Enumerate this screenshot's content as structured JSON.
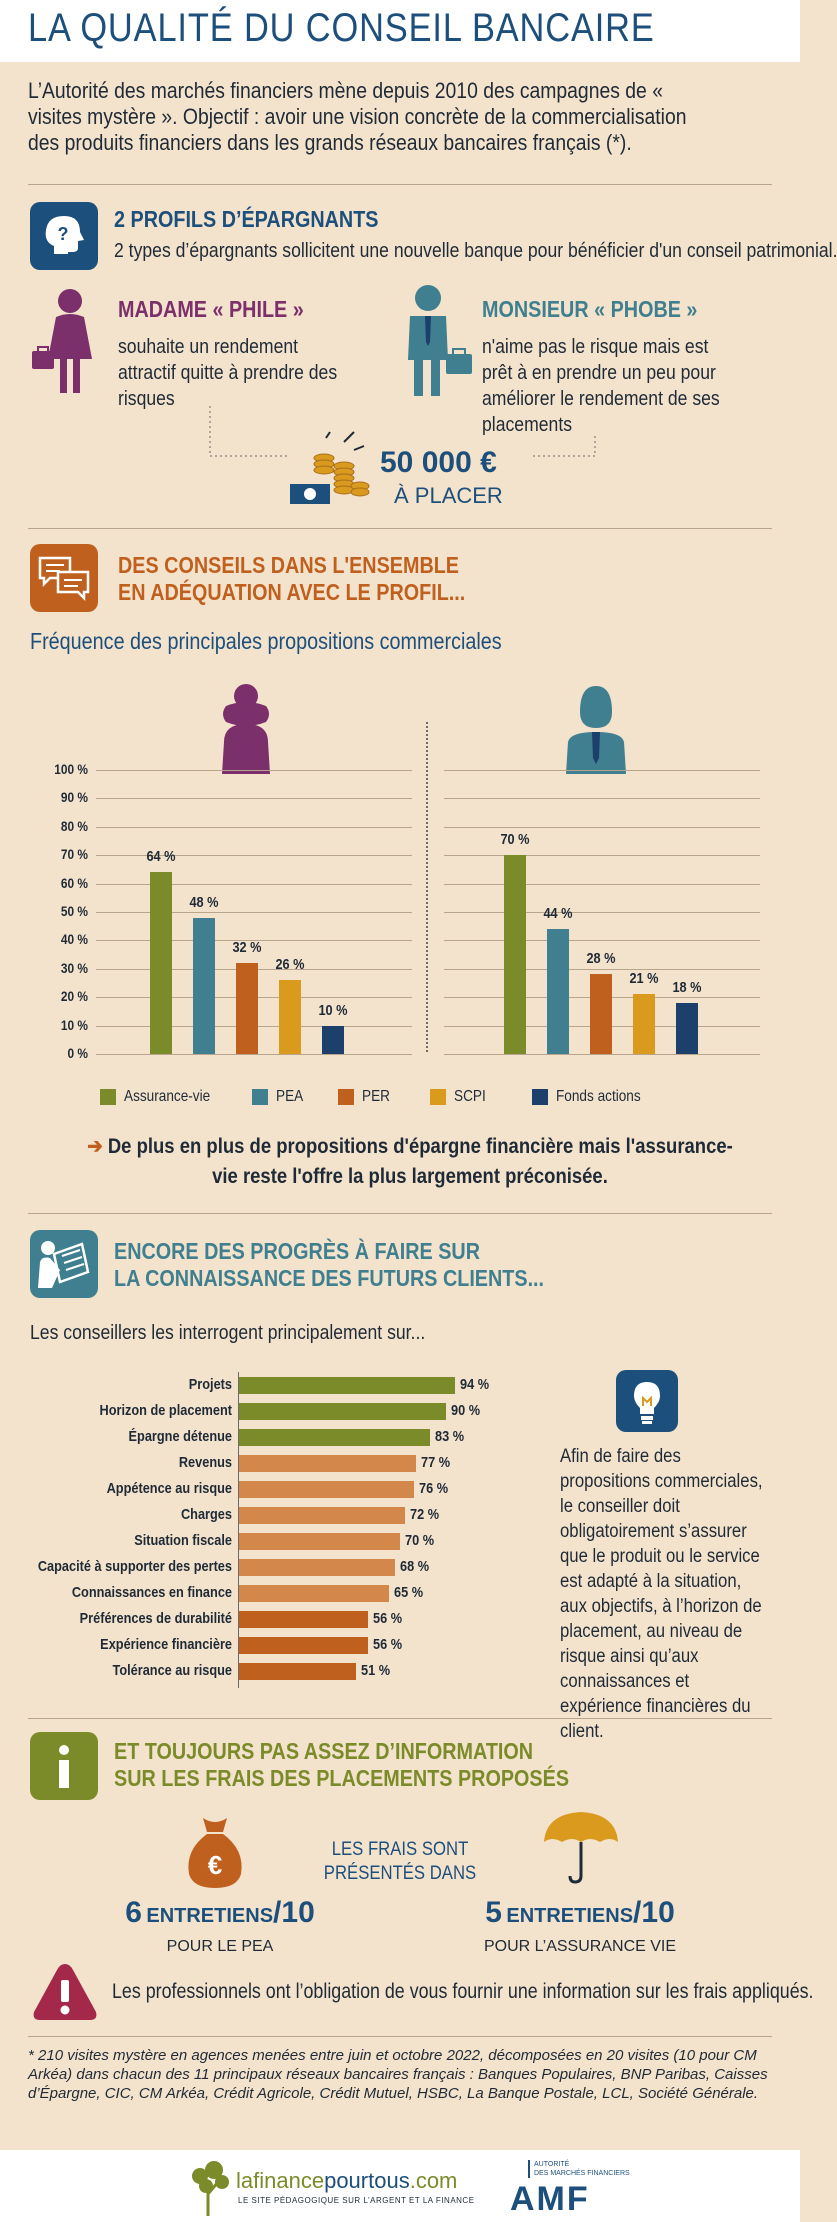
{
  "header": {
    "title": "LA QUALITÉ DU CONSEIL BANCAIRE"
  },
  "intro": "L’Autorité des marchés financiers mène depuis 2010 des campagnes de « visites mystère ». Objectif : avoir une vision concrète de la commercialisation des produits financiers dans les grands réseaux bancaires français (*).",
  "profiles": {
    "title": "2 PROFILS D’ÉPARGNANTS",
    "subtitle": "2 types d’épargnants sollicitent une nouvelle banque pour bénéficier d'un conseil patrimonial.",
    "madame": {
      "name": "MADAME « PHILE »",
      "desc": "souhaite un rendement attractif quitte à prendre des risques"
    },
    "monsieur": {
      "name": "MONSIEUR « PHOBE »",
      "desc": "n'aime pas le risque mais est prêt à en prendre un peu pour améliorer le rendement de ses placements"
    },
    "amount": "50 000 €",
    "amount_label": "À PLACER"
  },
  "advice": {
    "title_line1": "DES CONSEILS DANS L'ENSEMBLE",
    "title_line2": "EN ADÉQUATION AVEC LE PROFIL...",
    "chart_title": "Fréquence des principales propositions commerciales",
    "conclusion": "De plus en plus de propositions d'épargne financière mais l'assurance-vie reste l'offre la plus largement préconisée."
  },
  "chart_data": [
    {
      "type": "bar",
      "title": "Fréquence des principales propositions commerciales",
      "categories": [
        "Madame « Phile »",
        "Monsieur « Phobe »"
      ],
      "ylim": [
        0,
        100
      ],
      "yticks": [
        "100 %",
        "90 %",
        "80 %",
        "70 %",
        "60 %",
        "50 %",
        "40 %",
        "30 %",
        "20 %",
        "10 %",
        "0 %"
      ],
      "series": [
        {
          "name": "Assurance-vie",
          "values": [
            64,
            70
          ],
          "labels": [
            "64 %",
            "70 %"
          ],
          "color": "#7b8b2a"
        },
        {
          "name": "PEA",
          "values": [
            48,
            44
          ],
          "labels": [
            "48 %",
            "44 %"
          ],
          "color": "#3f7f8f"
        },
        {
          "name": "PER",
          "values": [
            32,
            28
          ],
          "labels": [
            "32 %",
            "28 %"
          ],
          "color": "#c0601f"
        },
        {
          "name": "SCPI",
          "values": [
            26,
            21
          ],
          "labels": [
            "26 %",
            "21 %"
          ],
          "color": "#d99a1e"
        },
        {
          "name": "Fonds actions",
          "values": [
            10,
            18
          ],
          "labels": [
            "10 %",
            "18 %"
          ],
          "color": "#1d3f6b"
        }
      ],
      "legend": "bottom"
    },
    {
      "type": "bar",
      "orientation": "horizontal",
      "categories": [
        "Projets",
        "Horizon de placement",
        "Épargne détenue",
        "Revenus",
        "Appétence au risque",
        "Charges",
        "Situation fiscale",
        "Capacité à supporter des pertes",
        "Connaissances en finance",
        "Préférences de durabilité",
        "Expérience financière",
        "Tolérance au risque"
      ],
      "values": [
        94,
        90,
        83,
        77,
        76,
        72,
        70,
        68,
        65,
        56,
        56,
        51
      ],
      "labels": [
        "94 %",
        "90 %",
        "83 %",
        "77 %",
        "76 %",
        "72 %",
        "70 %",
        "68 %",
        "65 %",
        "56 %",
        "56 %",
        "51 %"
      ],
      "colors": [
        "#7b8b2a",
        "#7b8b2a",
        "#7b8b2a",
        "#d4874a",
        "#d4874a",
        "#d4874a",
        "#d4874a",
        "#d4874a",
        "#d4874a",
        "#c0601f",
        "#c0601f",
        "#c0601f"
      ],
      "xlim": [
        0,
        100
      ]
    }
  ],
  "knowledge": {
    "title_line1": "ENCORE DES PROGRÈS À FAIRE SUR",
    "title_line2": "LA CONNAISSANCE DES FUTURS CLIENTS...",
    "lead": "Les conseillers les interrogent principalement sur...",
    "note": "Afin de faire des propositions commerciales, le conseiller doit obligatoirement s’assurer que le produit ou le service est adapté à la situation, aux objectifs, à l’horizon de placement, au niveau de risque ainsi qu’aux connaissances et expérience financières du client."
  },
  "fees": {
    "title_line1": "ET TOUJOURS PAS ASSEZ D’INFORMATION",
    "title_line2": "SUR LES FRAIS DES PLACEMENTS PROPOSÉS",
    "center_line1": "LES FRAIS SONT",
    "center_line2": "PRÉSENTÉS DANS",
    "left_count": "6",
    "left_word": "ENTRETIENS",
    "left_denom": "/10",
    "left_sub": "POUR LE PEA",
    "right_count": "5",
    "right_word": "ENTRETIENS",
    "right_denom": "/10",
    "right_sub": "POUR L’ASSURANCE VIE",
    "warning": "Les professionnels ont l’obligation de vous fournir une information sur les frais appliqués.",
    "euro_symbol": "€"
  },
  "footnote": "* 210 visites mystère en agences menées entre juin et octobre 2022, décomposées en 20 visites (10 pour CM Arkéa) dans chacun des 11 principaux réseaux bancaires français : Banques Populaires, BNP Paribas, Caisses d’Épargne, CIC, CM Arkéa, Crédit Agricole, Crédit Mutuel, HSBC, La Banque Postale, LCL, Société Générale.",
  "footer": {
    "logo1_a": "lafinance",
    "logo1_b": "pourtous",
    "logo1_c": ".com",
    "logo1_tagline": "LE SITE PÉDAGOGIQUE SUR L’ARGENT ET LA FINANCE",
    "logo2_small_1": "AUTORITÉ",
    "logo2_small_2": "DES MARCHÉS FINANCIERS",
    "logo2": "AMF"
  },
  "colors": {
    "navy": "#1d4f7c",
    "orange": "#c0601f",
    "teal": "#3f7f8f",
    "purple": "#7b2f6b",
    "olive": "#7b8b2a",
    "crimson": "#a3284a"
  }
}
